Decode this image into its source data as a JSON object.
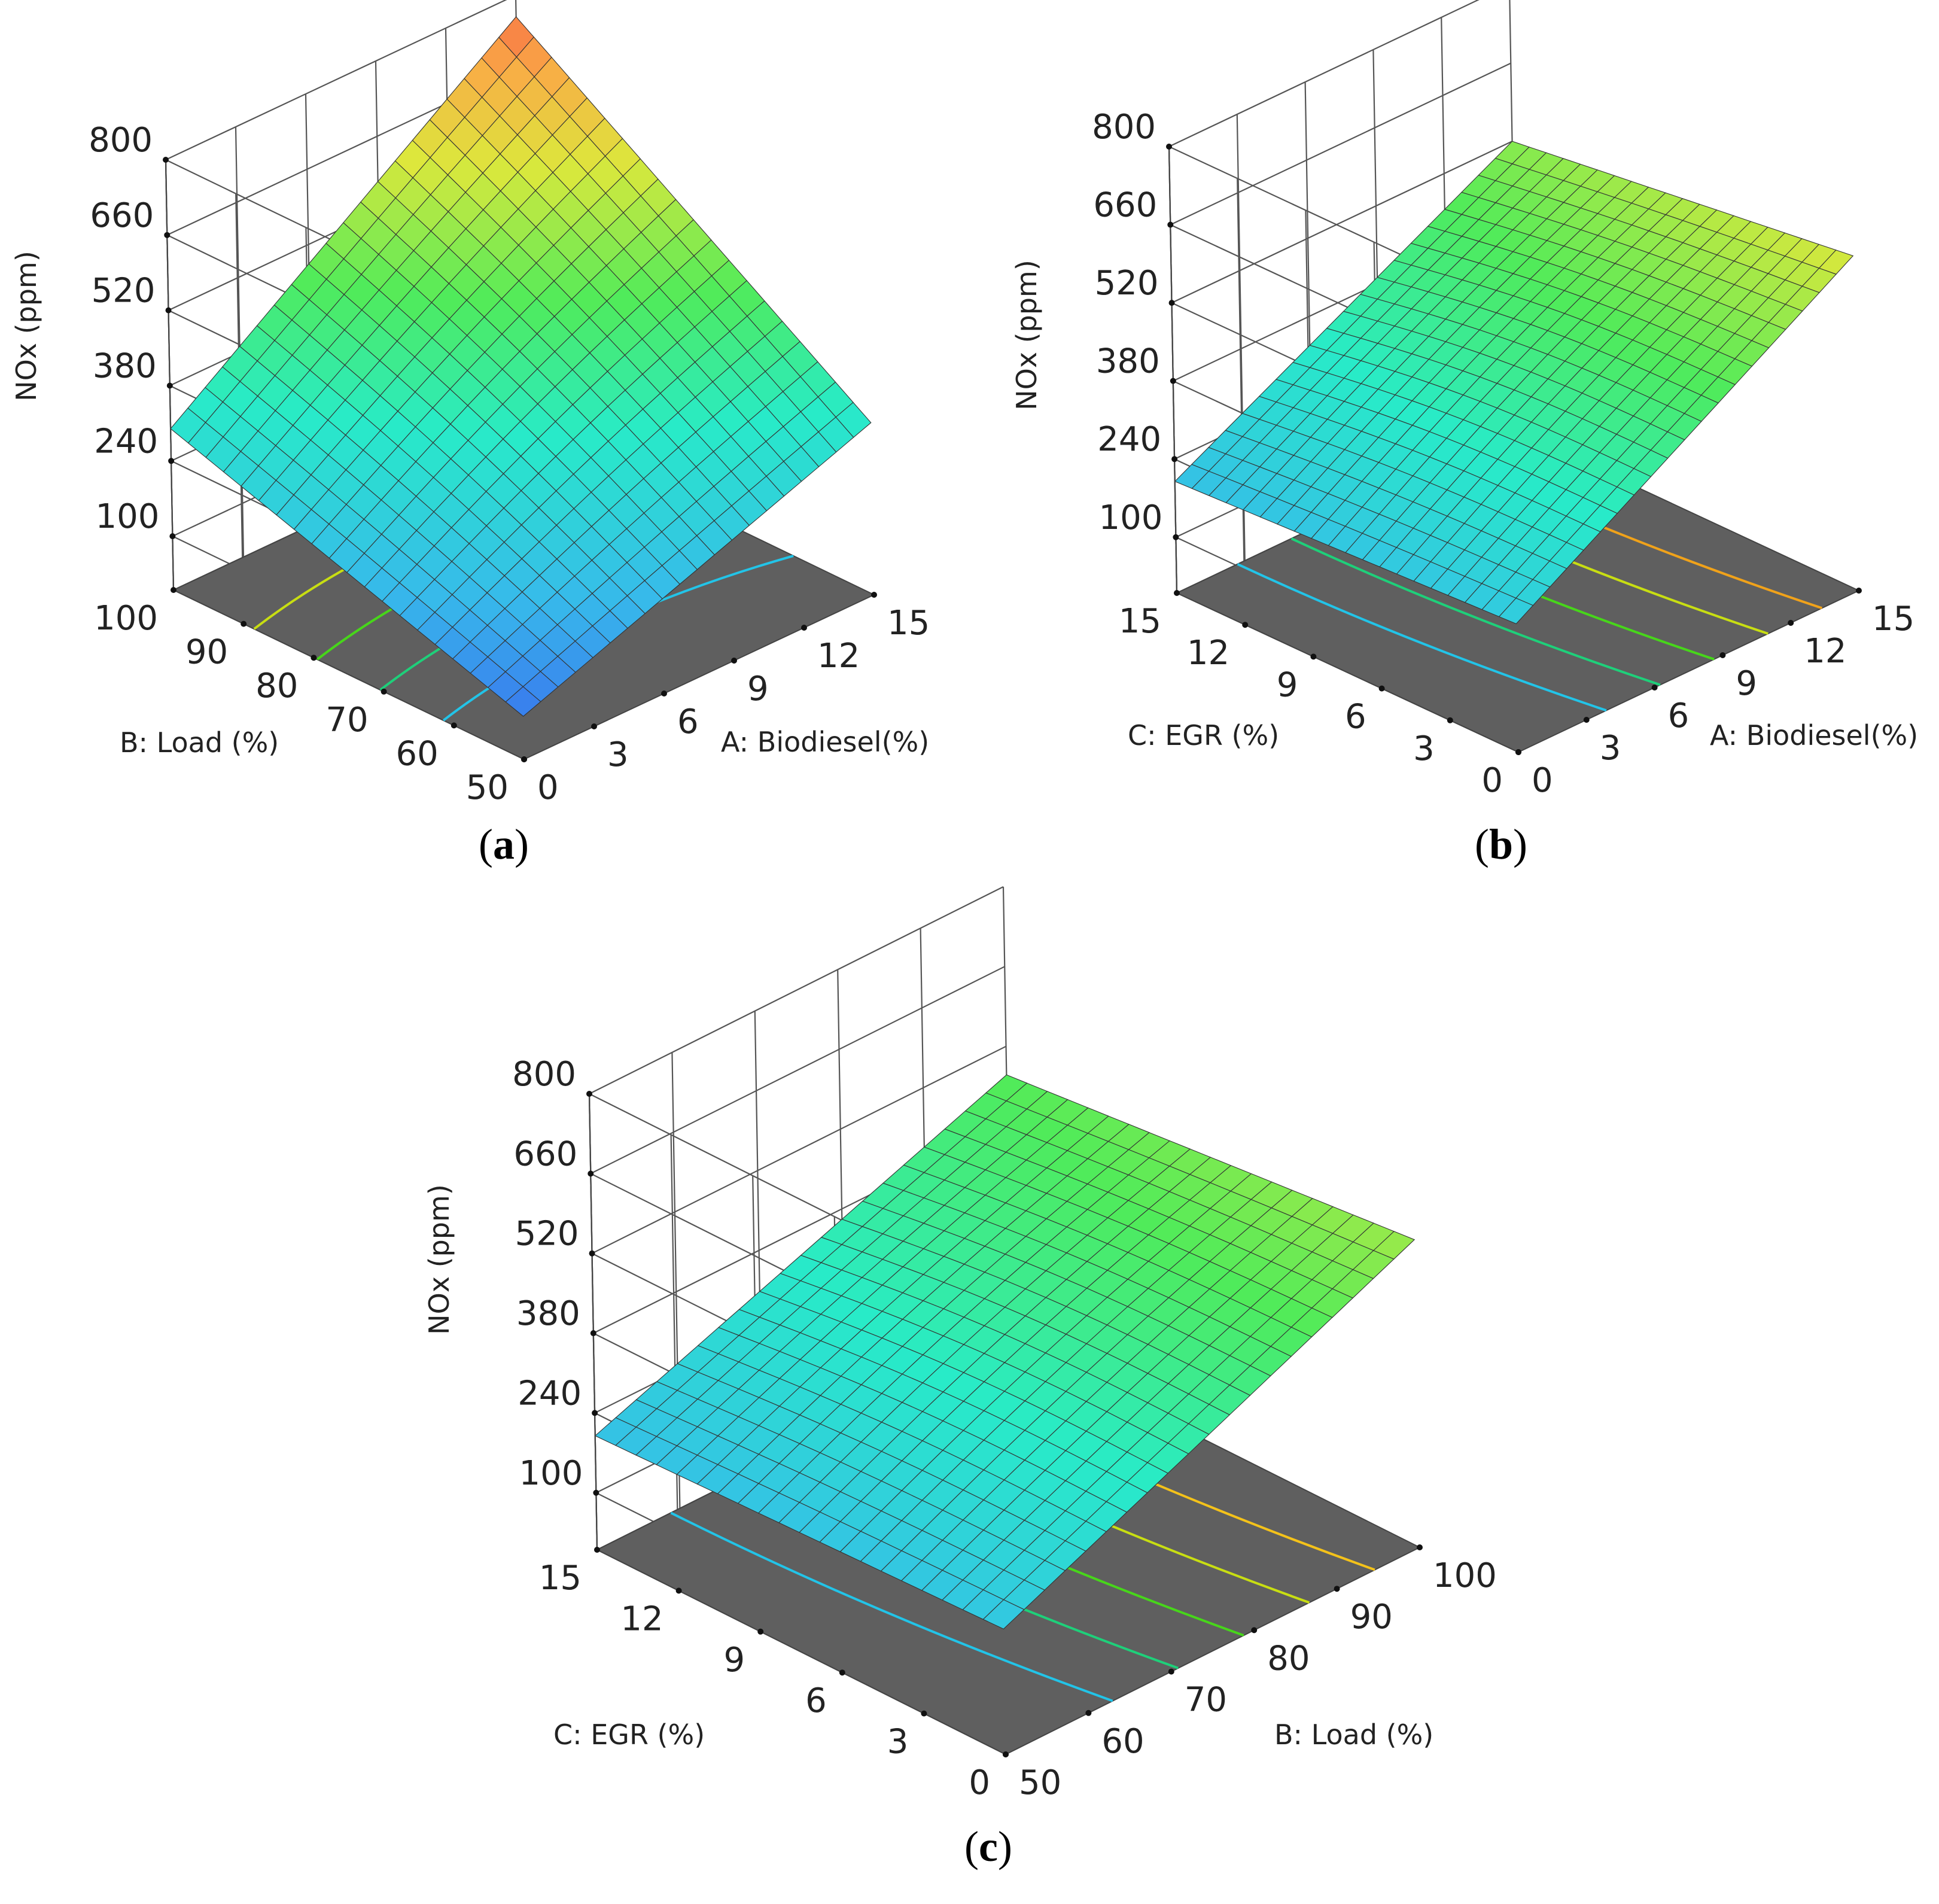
{
  "figure": {
    "chart_data": [
      {
        "type": "surface3d",
        "panel_label": "a",
        "zlabel": "NOx (ppm)",
        "z_ticks": [
          100,
          240,
          380,
          520,
          660,
          800
        ],
        "zlim": [
          0,
          800
        ],
        "x_axis": {
          "label": "A: Biodiesel(%)",
          "ticks": [
            0,
            3,
            6,
            9,
            12,
            15
          ],
          "range": [
            0,
            15
          ]
        },
        "y_axis": {
          "label": "B: Load (%)",
          "ticks": [
            50,
            60,
            70,
            80,
            90,
            100
          ],
          "range": [
            50,
            100
          ]
        },
        "surface_corners": {
          "x_min_y_min": 80,
          "x_max_y_min": 320,
          "x_min_y_max": 300,
          "x_max_y_max": 760
        },
        "contour_colors": [
          "#22c4e8",
          "#1ed07a",
          "#47d61a",
          "#c8de12"
        ],
        "floor_color": "#5f5f5f"
      },
      {
        "type": "surface3d",
        "panel_label": "b",
        "zlabel": "NOx (ppm)",
        "z_ticks": [
          100,
          240,
          380,
          520,
          660,
          800
        ],
        "zlim": [
          0,
          800
        ],
        "x_axis": {
          "label": "A: Biodiesel(%)",
          "ticks": [
            0,
            3,
            6,
            9,
            12,
            15
          ],
          "range": [
            0,
            15
          ]
        },
        "y_axis": {
          "label": "C: EGR (%)",
          "ticks": [
            0,
            3,
            6,
            9,
            12,
            15
          ],
          "range": [
            0,
            15
          ]
        },
        "surface_corners": {
          "x_min_y_min": 230,
          "x_max_y_min": 600,
          "x_min_y_max": 200,
          "x_max_y_max": 520
        },
        "contour_colors": [
          "#22c4e8",
          "#1ed07a",
          "#47d61a",
          "#c8de12",
          "#f0a21a"
        ],
        "floor_color": "#5f5f5f"
      },
      {
        "type": "surface3d",
        "panel_label": "c",
        "zlabel": "NOx (ppm)",
        "z_ticks": [
          100,
          240,
          380,
          520,
          660,
          800
        ],
        "zlim": [
          0,
          800
        ],
        "x_axis": {
          "label": "B: Load (%)",
          "ticks": [
            50,
            60,
            70,
            80,
            90,
            100
          ],
          "range": [
            50,
            100
          ]
        },
        "y_axis": {
          "label": "C: EGR (%)",
          "ticks": [
            0,
            3,
            6,
            9,
            12,
            15
          ],
          "range": [
            0,
            15
          ]
        },
        "surface_corners": {
          "x_min_y_min": 220,
          "x_max_y_min": 540,
          "x_min_y_max": 200,
          "x_max_y_max": 470
        },
        "contour_colors": [
          "#22c4e8",
          "#1ed07a",
          "#47d61a",
          "#c8de12",
          "#f4c21a"
        ],
        "floor_color": "#5f5f5f"
      }
    ]
  }
}
